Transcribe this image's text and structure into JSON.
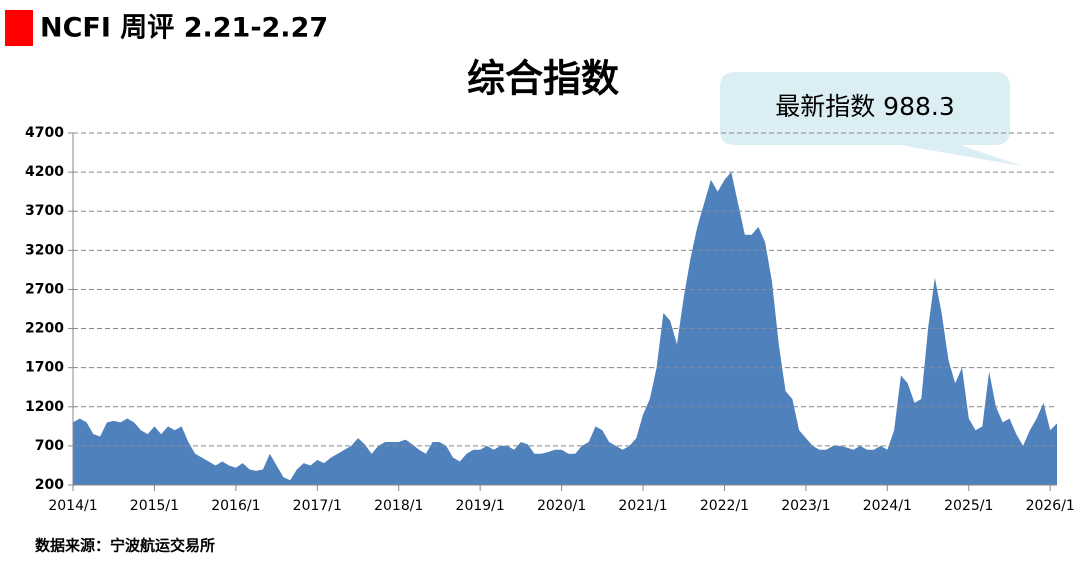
{
  "chart_data": {
    "type": "area",
    "header": "NCFI 周评 2.21-2.27",
    "title": "综合指数",
    "annotation": "最新指数 988.3",
    "source": "数据来源：宁波航运交易所",
    "color": "#4f81bd",
    "grid": true,
    "ylim": [
      200,
      4700
    ],
    "yticks": [
      200,
      700,
      1200,
      1700,
      2200,
      2700,
      3200,
      3700,
      4200,
      4700
    ],
    "categories": [
      "2014/1",
      null,
      null,
      null,
      null,
      null,
      null,
      null,
      null,
      null,
      null,
      null,
      "2015/1",
      null,
      null,
      null,
      null,
      null,
      null,
      null,
      null,
      null,
      null,
      null,
      "2016/1",
      null,
      null,
      null,
      null,
      null,
      null,
      null,
      null,
      null,
      null,
      null,
      "2017/1",
      null,
      null,
      null,
      null,
      null,
      null,
      null,
      null,
      null,
      null,
      null,
      "2018/1",
      null,
      null,
      null,
      null,
      null,
      null,
      null,
      null,
      null,
      null,
      null,
      "2019/1",
      null,
      null,
      null,
      null,
      null,
      null,
      null,
      null,
      null,
      null,
      null,
      "2020/1",
      null,
      null,
      null,
      null,
      null,
      null,
      null,
      null,
      null,
      null,
      null,
      "2021/1",
      null,
      null,
      null,
      null,
      null,
      null,
      null,
      null,
      null,
      null,
      null,
      "2022/1",
      null,
      null,
      null,
      null,
      null,
      null,
      null,
      null,
      null,
      null,
      null,
      "2023/1",
      null,
      null,
      null,
      null,
      null,
      null,
      null,
      null,
      null,
      null,
      null,
      "2024/1",
      null,
      null,
      null,
      null,
      null,
      null,
      null,
      null,
      null,
      null,
      null,
      "2025/1",
      null,
      null,
      null,
      null,
      null,
      null,
      null,
      null,
      null,
      null,
      null,
      "2026/1",
      null
    ],
    "values": [
      1000,
      1050,
      1000,
      850,
      820,
      1000,
      1020,
      1000,
      1050,
      1000,
      900,
      850,
      950,
      850,
      950,
      900,
      950,
      750,
      600,
      550,
      500,
      450,
      500,
      450,
      420,
      480,
      400,
      380,
      400,
      600,
      450,
      300,
      260,
      400,
      480,
      450,
      520,
      480,
      550,
      600,
      650,
      700,
      800,
      720,
      600,
      700,
      750,
      750,
      750,
      780,
      720,
      650,
      600,
      750,
      750,
      700,
      550,
      500,
      600,
      650,
      650,
      700,
      650,
      700,
      700,
      650,
      750,
      720,
      600,
      600,
      620,
      650,
      650,
      600,
      600,
      700,
      750,
      950,
      900,
      750,
      700,
      650,
      700,
      800,
      1100,
      1300,
      1700,
      2400,
      2300,
      2000,
      2600,
      3100,
      3500,
      3800,
      4100,
      3950,
      4100,
      4200,
      3800,
      3400,
      3400,
      3500,
      3300,
      2800,
      2000,
      1400,
      1300,
      900,
      800,
      700,
      650,
      650,
      700,
      700,
      680,
      650,
      700,
      650,
      650,
      700,
      650,
      900,
      1600,
      1500,
      1250,
      1300,
      2200,
      2850,
      2400,
      1800,
      1500,
      1700,
      1050,
      900,
      950,
      1650,
      1200,
      1000,
      1050,
      850,
      700,
      900,
      1050,
      1250,
      900,
      988.3
    ]
  }
}
